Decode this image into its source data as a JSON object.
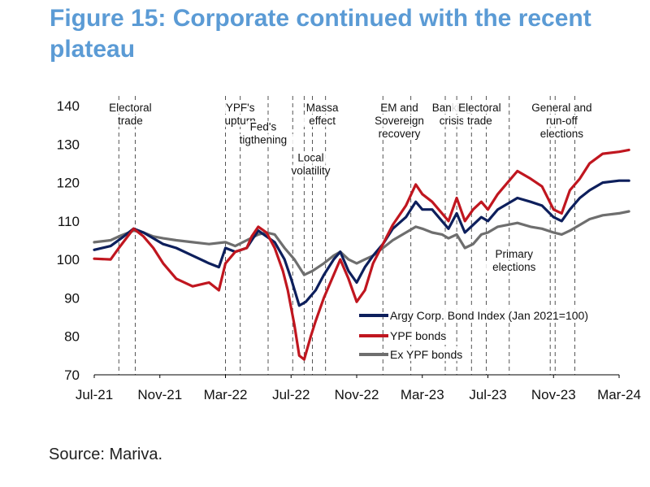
{
  "figure_title": "Figure 15: Corporate continued with the recent plateau",
  "source": "Source: Mariva.",
  "colors": {
    "title": "#5b9bd5",
    "series_navy": "#0d1f5c",
    "series_red": "#c0161f",
    "series_gray": "#6e6e6e",
    "axis": "#000000",
    "event_line": "#555555"
  },
  "chart_data": {
    "type": "line",
    "title": "Figure 15: Corporate continued with the recent plateau",
    "xlabel": "",
    "ylabel": "",
    "x_start": "2021-07",
    "x_end": "2024-03",
    "ylim": [
      70,
      140
    ],
    "yticks": [
      70,
      80,
      90,
      100,
      110,
      120,
      130,
      140
    ],
    "x_tick_labels": [
      {
        "label": "Jul-21",
        "t": 0
      },
      {
        "label": "Nov-21",
        "t": 4
      },
      {
        "label": "Mar-22",
        "t": 8
      },
      {
        "label": "Jul-22",
        "t": 12
      },
      {
        "label": "Nov-22",
        "t": 16
      },
      {
        "label": "Mar-23",
        "t": 20
      },
      {
        "label": "Jul-23",
        "t": 24
      },
      {
        "label": "Nov-23",
        "t": 28
      },
      {
        "label": "Mar-24",
        "t": 32
      }
    ],
    "legend": {
      "position": "center-right"
    },
    "series": [
      {
        "name": "Argy Corp. Bond Index (Jan 2021=100)",
        "color": "#0d1f5c",
        "points": [
          [
            0,
            102.5
          ],
          [
            1,
            103.5
          ],
          [
            1.8,
            106
          ],
          [
            2.4,
            108
          ],
          [
            3,
            107
          ],
          [
            3.6,
            105.5
          ],
          [
            4.2,
            104
          ],
          [
            5,
            103
          ],
          [
            6,
            101
          ],
          [
            7,
            99
          ],
          [
            7.6,
            98
          ],
          [
            8,
            103
          ],
          [
            8.6,
            102
          ],
          [
            9.3,
            103
          ],
          [
            9.6,
            105
          ],
          [
            10,
            107.5
          ],
          [
            10.5,
            106
          ],
          [
            11,
            104.5
          ],
          [
            11.6,
            100
          ],
          [
            12,
            95
          ],
          [
            12.5,
            88
          ],
          [
            12.9,
            89
          ],
          [
            13.5,
            92
          ],
          [
            14,
            96
          ],
          [
            14.6,
            100
          ],
          [
            15,
            102
          ],
          [
            15.5,
            97
          ],
          [
            16,
            94
          ],
          [
            16.5,
            98
          ],
          [
            17,
            101
          ],
          [
            17.6,
            104
          ],
          [
            18.2,
            108
          ],
          [
            19,
            111
          ],
          [
            19.6,
            115
          ],
          [
            20,
            113
          ],
          [
            20.6,
            113
          ],
          [
            21.2,
            110
          ],
          [
            21.6,
            108
          ],
          [
            22.1,
            112
          ],
          [
            22.6,
            107
          ],
          [
            23.1,
            109
          ],
          [
            23.6,
            111
          ],
          [
            24,
            110
          ],
          [
            24.6,
            113
          ],
          [
            25.2,
            114.5
          ],
          [
            25.8,
            116
          ],
          [
            26.6,
            115
          ],
          [
            27.3,
            114
          ],
          [
            28,
            111
          ],
          [
            28.5,
            110
          ],
          [
            29,
            113
          ],
          [
            29.6,
            116
          ],
          [
            30.2,
            118
          ],
          [
            31,
            120
          ],
          [
            32,
            120.5
          ],
          [
            32.6,
            120.5
          ]
        ]
      },
      {
        "name": "YPF bonds",
        "color": "#c0161f",
        "points": [
          [
            0,
            100.2
          ],
          [
            1,
            100
          ],
          [
            1.5,
            103
          ],
          [
            2.4,
            108
          ],
          [
            3,
            106
          ],
          [
            3.6,
            103
          ],
          [
            4.2,
            99
          ],
          [
            5,
            95
          ],
          [
            6,
            93
          ],
          [
            7,
            94
          ],
          [
            7.6,
            92
          ],
          [
            8,
            99
          ],
          [
            8.6,
            102
          ],
          [
            9.3,
            103
          ],
          [
            9.6,
            106
          ],
          [
            10,
            108.5
          ],
          [
            10.5,
            107
          ],
          [
            11,
            103
          ],
          [
            11.5,
            97
          ],
          [
            11.8,
            92
          ],
          [
            12.2,
            83
          ],
          [
            12.5,
            75
          ],
          [
            12.8,
            74
          ],
          [
            13.2,
            80
          ],
          [
            13.5,
            84
          ],
          [
            14,
            90
          ],
          [
            14.6,
            96
          ],
          [
            15,
            100
          ],
          [
            15.5,
            95
          ],
          [
            16,
            89
          ],
          [
            16.5,
            92
          ],
          [
            17,
            99
          ],
          [
            17.6,
            104
          ],
          [
            18.2,
            109
          ],
          [
            19,
            114
          ],
          [
            19.6,
            119.5
          ],
          [
            20,
            117
          ],
          [
            20.6,
            115
          ],
          [
            21.2,
            112
          ],
          [
            21.6,
            110
          ],
          [
            22.1,
            116
          ],
          [
            22.6,
            110
          ],
          [
            23.1,
            113
          ],
          [
            23.6,
            115
          ],
          [
            24,
            113
          ],
          [
            24.6,
            117
          ],
          [
            25.2,
            120
          ],
          [
            25.8,
            123
          ],
          [
            26.6,
            121
          ],
          [
            27.3,
            119
          ],
          [
            28,
            113
          ],
          [
            28.5,
            112
          ],
          [
            29,
            118
          ],
          [
            29.6,
            121
          ],
          [
            30.2,
            125
          ],
          [
            31,
            127.5
          ],
          [
            32,
            128
          ],
          [
            32.6,
            128.5
          ]
        ]
      },
      {
        "name": "Ex YPF bonds",
        "color": "#6e6e6e",
        "points": [
          [
            0,
            104.5
          ],
          [
            1,
            105
          ],
          [
            1.5,
            106
          ],
          [
            2.4,
            107.5
          ],
          [
            3,
            107
          ],
          [
            3.6,
            106
          ],
          [
            4.2,
            105.5
          ],
          [
            5,
            105
          ],
          [
            6,
            104.5
          ],
          [
            7,
            104
          ],
          [
            8,
            104.5
          ],
          [
            8.6,
            103.5
          ],
          [
            9.3,
            105
          ],
          [
            10,
            106.5
          ],
          [
            10.5,
            107
          ],
          [
            11,
            106.5
          ],
          [
            11.6,
            103
          ],
          [
            12.2,
            100
          ],
          [
            12.8,
            96
          ],
          [
            13.3,
            97
          ],
          [
            14,
            99
          ],
          [
            14.6,
            101
          ],
          [
            15,
            102
          ],
          [
            15.5,
            100
          ],
          [
            16,
            99
          ],
          [
            16.5,
            100
          ],
          [
            17,
            101
          ],
          [
            17.6,
            103
          ],
          [
            18.2,
            105
          ],
          [
            19,
            107
          ],
          [
            19.6,
            108.5
          ],
          [
            20,
            108
          ],
          [
            20.6,
            107
          ],
          [
            21.2,
            106.5
          ],
          [
            21.6,
            105.5
          ],
          [
            22.1,
            106.5
          ],
          [
            22.6,
            103
          ],
          [
            23.1,
            104
          ],
          [
            23.6,
            106.5
          ],
          [
            24,
            107
          ],
          [
            24.6,
            108.5
          ],
          [
            25.2,
            109
          ],
          [
            25.8,
            109.5
          ],
          [
            26.6,
            108.5
          ],
          [
            27.3,
            108
          ],
          [
            28,
            107
          ],
          [
            28.5,
            106.5
          ],
          [
            29,
            107.5
          ],
          [
            29.6,
            109
          ],
          [
            30.2,
            110.5
          ],
          [
            31,
            111.5
          ],
          [
            32,
            112
          ],
          [
            32.6,
            112.5
          ]
        ]
      }
    ],
    "event_lines": [
      {
        "id": "electoral-trade-1",
        "t": [
          1.5,
          2.5
        ]
      },
      {
        "id": "ypf-upturn",
        "t": [
          8,
          8.9
        ]
      },
      {
        "id": "feds-tightening",
        "t": [
          10.6
        ]
      },
      {
        "id": "local-volatility",
        "t": [
          12.1,
          12.8
        ]
      },
      {
        "id": "massa-effect",
        "t": [
          13.3,
          14.1
        ]
      },
      {
        "id": "em-sovereign-recovery",
        "t": [
          17.6,
          19.3
        ]
      },
      {
        "id": "banking-crisis",
        "t": [
          21.4,
          22.1
        ]
      },
      {
        "id": "electoral-trade-2",
        "t": [
          23,
          23.9
        ]
      },
      {
        "id": "primary-elections",
        "t": [
          25.3
        ]
      },
      {
        "id": "general-runoff-elections",
        "t": [
          27.8,
          28.1,
          29.3
        ]
      }
    ],
    "annotations": [
      {
        "id": "electoral-trade-1",
        "lines": [
          "Electoral",
          "trade"
        ],
        "t": 2.2,
        "y": 138.5
      },
      {
        "id": "ypf-upturn",
        "lines": [
          "YPF's",
          "upturn"
        ],
        "t": 8.9,
        "y": 138.5
      },
      {
        "id": "feds-tightening",
        "lines": [
          "Fed's",
          "tigthening"
        ],
        "t": 10.3,
        "y": 133.5
      },
      {
        "id": "local-volatility",
        "lines": [
          "Local",
          "volatility"
        ],
        "t": 13.2,
        "y": 125.5
      },
      {
        "id": "massa-effect",
        "lines": [
          "Massa",
          "effect"
        ],
        "t": 13.9,
        "y": 138.5
      },
      {
        "id": "em-sovereign-recovery",
        "lines": [
          "EM and",
          "Sovereign",
          "recovery"
        ],
        "t": 18.6,
        "y": 138.5
      },
      {
        "id": "banking-crisis",
        "lines": [
          "Banking",
          "crisis"
        ],
        "t": 21.8,
        "y": 138.5
      },
      {
        "id": "electoral-trade-2",
        "lines": [
          "Electoral",
          "trade"
        ],
        "t": 23.5,
        "y": 138.5
      },
      {
        "id": "primary-elections",
        "lines": [
          "Primary",
          "elections"
        ],
        "t": 25.6,
        "y": 100.5
      },
      {
        "id": "general-runoff-elections",
        "lines": [
          "General and",
          "run-off",
          "elections"
        ],
        "t": 28.5,
        "y": 138.5
      }
    ]
  }
}
